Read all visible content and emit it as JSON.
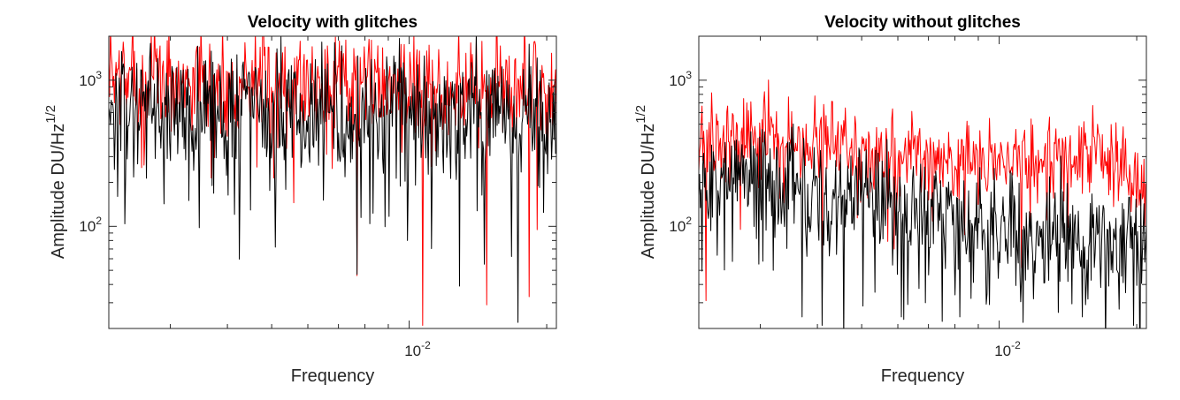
{
  "colors": {
    "series_red": "#ff0000",
    "series_black": "#000000",
    "axis": "#262626",
    "background": "#ffffff"
  },
  "chart_data": [
    {
      "type": "line",
      "title": "Velocity with glitches",
      "xlabel": "Frequency",
      "ylabel": "Amplitude DU/Hz",
      "ylabel_exponent": "1/2",
      "x_scale": "log",
      "y_scale": "log",
      "xlim": [
        0.0022,
        0.021
      ],
      "ylim": [
        20,
        2000
      ],
      "xticks": [
        {
          "value": 0.01,
          "base": "10",
          "exp": "-2"
        }
      ],
      "yticks": [
        {
          "value": 100,
          "base": "10",
          "exp": "2"
        },
        {
          "value": 1000,
          "base": "10",
          "exp": "3"
        }
      ],
      "grid": false,
      "legend": "none",
      "series": [
        {
          "color": "#ff0000",
          "seed": 7,
          "points": 560,
          "levels": [
            [
              0.0022,
              1050
            ],
            [
              0.004,
              1000
            ],
            [
              0.008,
              950
            ],
            [
              0.021,
              900
            ]
          ],
          "spread": 0.26,
          "dip_prob": 0.08,
          "dip_depth": 0.7,
          "dips": [
            [
              0.0107,
              21
            ],
            [
              0.0148,
              29
            ],
            [
              0.0183,
              33
            ],
            [
              0.0077,
              46
            ],
            [
              0.0056,
              145
            ]
          ]
        },
        {
          "color": "#000000",
          "seed": 13,
          "points": 560,
          "levels": [
            [
              0.0022,
              700
            ],
            [
              0.004,
              640
            ],
            [
              0.008,
              600
            ],
            [
              0.021,
              570
            ]
          ],
          "spread": 0.3,
          "dip_prob": 0.1,
          "dip_depth": 0.8,
          "dips": [
            [
              0.0023,
              160
            ],
            [
              0.0037,
              190
            ],
            [
              0.0051,
              72
            ],
            [
              0.0033,
              150
            ],
            [
              0.0077,
              47
            ],
            [
              0.0129,
              39
            ],
            [
              0.0146,
              55
            ],
            [
              0.0173,
              22
            ],
            [
              0.0099,
              80
            ]
          ]
        }
      ]
    },
    {
      "type": "line",
      "title": "Velocity without glitches",
      "xlabel": "Frequency",
      "ylabel": "Amplitude DU/Hz",
      "ylabel_exponent": "1/2",
      "x_scale": "log",
      "y_scale": "log",
      "xlim": [
        0.0022,
        0.021
      ],
      "ylim": [
        20,
        2000
      ],
      "xticks": [
        {
          "value": 0.01,
          "base": "10",
          "exp": "-2"
        }
      ],
      "yticks": [
        {
          "value": 100,
          "base": "10",
          "exp": "2"
        },
        {
          "value": 1000,
          "base": "10",
          "exp": "3"
        }
      ],
      "grid": false,
      "legend": "none",
      "series": [
        {
          "color": "#ff0000",
          "seed": 21,
          "points": 560,
          "levels": [
            [
              0.0022,
              420
            ],
            [
              0.0025,
              430
            ],
            [
              0.004,
              370
            ],
            [
              0.0065,
              290
            ],
            [
              0.009,
              255
            ],
            [
              0.012,
              290
            ],
            [
              0.016,
              320
            ],
            [
              0.0185,
              280
            ],
            [
              0.021,
              170
            ]
          ],
          "spread": 0.2,
          "dip_prob": 0.05,
          "dip_depth": 0.45,
          "dips": [
            [
              0.00235,
              820
            ],
            [
              0.00228,
              31
            ],
            [
              0.0041,
              45
            ],
            [
              0.0059,
              70
            ],
            [
              0.0112,
              52
            ]
          ]
        },
        {
          "color": "#000000",
          "seed": 5,
          "points": 560,
          "levels": [
            [
              0.0022,
              210
            ],
            [
              0.0025,
              270
            ],
            [
              0.004,
              175
            ],
            [
              0.006,
              145
            ],
            [
              0.009,
              100
            ],
            [
              0.012,
              88
            ],
            [
              0.016,
              80
            ],
            [
              0.021,
              72
            ]
          ],
          "spread": 0.28,
          "dip_prob": 0.12,
          "dip_depth": 0.75,
          "dips": [
            [
              0.0023,
              130
            ],
            [
              0.0032,
              50
            ],
            [
              0.0037,
              24
            ],
            [
              0.0041,
              21
            ],
            [
              0.0061,
              24
            ],
            [
              0.0069,
              30
            ],
            [
              0.0082,
              24
            ],
            [
              0.0113,
              22
            ],
            [
              0.0152,
              24
            ],
            [
              0.0197,
              21
            ]
          ]
        }
      ]
    }
  ]
}
